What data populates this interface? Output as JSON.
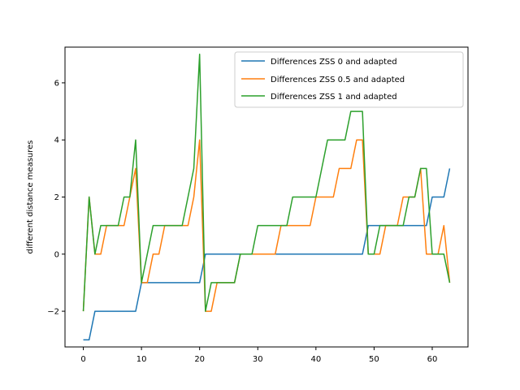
{
  "chart_data": {
    "type": "line",
    "title": "",
    "xlabel": "",
    "ylabel": "different distance measures",
    "xlim": [
      -3.15,
      66.15
    ],
    "ylim": [
      -3.25,
      7.25
    ],
    "xticks": [
      0,
      10,
      20,
      30,
      40,
      50,
      60
    ],
    "yticks": [
      -2,
      0,
      2,
      4,
      6
    ],
    "ytick_labels": [
      "−2",
      "0",
      "2",
      "4",
      "6"
    ],
    "grid": false,
    "legend_position": "top-right",
    "x": [
      0,
      1,
      2,
      3,
      4,
      5,
      6,
      7,
      8,
      9,
      10,
      11,
      12,
      13,
      14,
      15,
      16,
      17,
      18,
      19,
      20,
      21,
      22,
      23,
      24,
      25,
      26,
      27,
      28,
      29,
      30,
      31,
      32,
      33,
      34,
      35,
      36,
      37,
      38,
      39,
      40,
      41,
      42,
      43,
      44,
      45,
      46,
      47,
      48,
      49,
      50,
      51,
      52,
      53,
      54,
      55,
      56,
      57,
      58,
      59,
      60,
      61,
      62,
      63
    ],
    "series": [
      {
        "name": "Differences ZSS 0 and adapted",
        "color": "#1f77b4",
        "values": [
          -3,
          -3,
          -2,
          -2,
          -2,
          -2,
          -2,
          -2,
          -2,
          -2,
          -1,
          -1,
          -1,
          -1,
          -1,
          -1,
          -1,
          -1,
          -1,
          -1,
          -1,
          0,
          0,
          0,
          0,
          0,
          0,
          0,
          0,
          0,
          0,
          0,
          0,
          0,
          0,
          0,
          0,
          0,
          0,
          0,
          0,
          0,
          0,
          0,
          0,
          0,
          0,
          0,
          0,
          1,
          1,
          1,
          1,
          1,
          1,
          1,
          1,
          1,
          1,
          1,
          2,
          2,
          2,
          3
        ]
      },
      {
        "name": "Differences ZSS 0.5 and adapted",
        "color": "#ff7f0e",
        "values": [
          -2,
          2,
          0,
          0,
          1,
          1,
          1,
          1,
          2,
          3,
          -1,
          -1,
          0,
          0,
          1,
          1,
          1,
          1,
          1,
          2,
          4,
          -2,
          -2,
          -1,
          -1,
          -1,
          -1,
          0,
          0,
          0,
          0,
          0,
          0,
          0,
          1,
          1,
          1,
          1,
          1,
          1,
          2,
          2,
          2,
          2,
          3,
          3,
          3,
          4,
          4,
          0,
          0,
          0,
          1,
          1,
          1,
          2,
          2,
          2,
          3,
          0,
          0,
          0,
          1,
          -1
        ]
      },
      {
        "name": "Differences ZSS 1 and adapted",
        "color": "#2ca02c",
        "values": [
          -2,
          2,
          0,
          1,
          1,
          1,
          1,
          2,
          2,
          4,
          -1,
          0,
          1,
          1,
          1,
          1,
          1,
          1,
          2,
          3,
          7,
          -2,
          -1,
          -1,
          -1,
          -1,
          -1,
          0,
          0,
          0,
          1,
          1,
          1,
          1,
          1,
          1,
          2,
          2,
          2,
          2,
          2,
          3,
          4,
          4,
          4,
          4,
          5,
          5,
          5,
          0,
          0,
          1,
          1,
          1,
          1,
          1,
          2,
          2,
          3,
          3,
          0,
          0,
          0,
          -1
        ]
      }
    ]
  }
}
